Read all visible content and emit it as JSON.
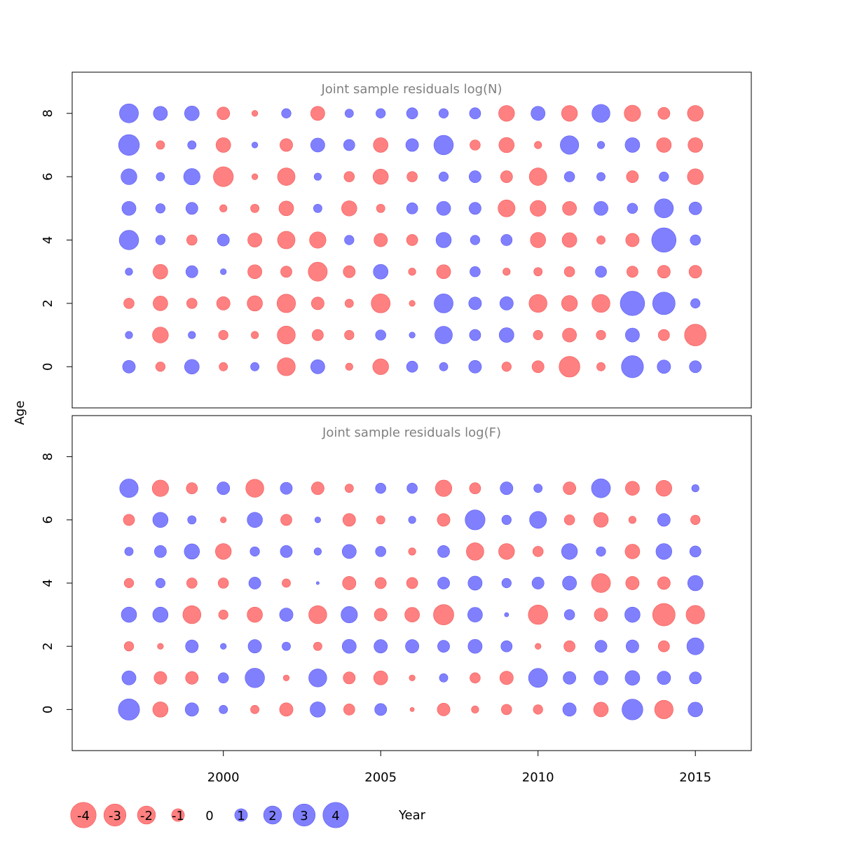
{
  "chart_data": {
    "type": "bubble",
    "xlabel": "Year",
    "ylabel": "Age",
    "x": [
      1997,
      1998,
      1999,
      2000,
      2001,
      2002,
      2003,
      2004,
      2005,
      2006,
      2007,
      2008,
      2009,
      2010,
      2011,
      2012,
      2013,
      2014,
      2015
    ],
    "x_ticks": [
      "2000",
      "2005",
      "2010",
      "2015"
    ],
    "colors": {
      "positive": "#8080ff",
      "negative": "#ff8080",
      "stroke_positive": "#5a5af0",
      "stroke_negative": "#f05a5a",
      "frame": "#000000",
      "title": "#808080"
    },
    "legend": {
      "values": [
        -4,
        -3,
        -2,
        -1,
        0,
        1,
        2,
        3,
        4
      ],
      "labels": [
        "-4",
        "-3",
        "-2",
        "-1",
        "0",
        "1",
        "2",
        "3",
        "4"
      ]
    },
    "panels": [
      {
        "title": "Joint sample residuals log(N)",
        "ylim": [
          -1.3,
          9.3
        ],
        "y_ticks": [
          "0",
          "2",
          "4",
          "6",
          "8"
        ],
        "ages": [
          0,
          1,
          2,
          3,
          4,
          5,
          6,
          7,
          8
        ],
        "residuals": [
          [
            0.9,
            -0.5,
            1.2,
            -0.4,
            0.4,
            -1.8,
            1.1,
            -0.3,
            -1.4,
            0.7,
            0.4,
            0.9,
            -0.5,
            -0.8,
            -2.4,
            -0.4,
            2.7,
            1.0,
            0.8
          ],
          [
            0.3,
            -1.4,
            0.3,
            -0.5,
            -0.3,
            -1.8,
            -0.7,
            -0.5,
            0.6,
            0.2,
            1.7,
            0.7,
            1.2,
            -0.5,
            -1.1,
            -0.5,
            1.1,
            -0.7,
            -2.6
          ],
          [
            -0.6,
            -1.2,
            -0.6,
            -1.0,
            -1.3,
            -1.9,
            -0.9,
            -0.4,
            -2.0,
            -0.2,
            2.0,
            0.9,
            1.0,
            -1.8,
            -1.4,
            -1.8,
            3.3,
            2.8,
            0.5
          ],
          [
            0.3,
            -1.2,
            0.8,
            0.2,
            -1.1,
            -0.7,
            -2.0,
            -0.8,
            1.2,
            -0.3,
            -1.1,
            0.6,
            -0.3,
            -0.4,
            -0.6,
            0.7,
            -0.7,
            -0.9,
            -0.9
          ],
          [
            2.1,
            0.5,
            -0.6,
            0.8,
            -1.1,
            -1.7,
            -1.5,
            0.5,
            -1.0,
            -0.7,
            1.3,
            0.5,
            0.7,
            -1.3,
            -1.2,
            -0.4,
            -1.0,
            3.3,
            0.6
          ],
          [
            1.1,
            0.5,
            0.8,
            -0.3,
            -0.4,
            -1.2,
            0.4,
            -1.3,
            -0.4,
            0.7,
            1.1,
            0.8,
            -1.6,
            -1.4,
            -1.1,
            1.1,
            0.6,
            2.0,
            0.9
          ],
          [
            1.4,
            0.4,
            1.5,
            -2.2,
            -0.2,
            -1.7,
            0.3,
            -0.6,
            -1.3,
            -0.6,
            0.5,
            0.8,
            -0.8,
            -1.7,
            0.6,
            0.4,
            -0.8,
            0.5,
            -1.4
          ],
          [
            2.4,
            -0.4,
            0.4,
            -1.2,
            0.2,
            -0.9,
            1.1,
            0.7,
            -1.2,
            0.9,
            2.1,
            -0.6,
            -1.3,
            -0.3,
            1.9,
            0.3,
            1.2,
            -1.2,
            -1.2
          ],
          [
            2.0,
            1.1,
            1.2,
            -0.9,
            -0.2,
            0.5,
            -1.1,
            0.4,
            0.5,
            0.7,
            0.5,
            0.7,
            -1.4,
            1.1,
            -1.4,
            1.8,
            -1.5,
            -0.8,
            -1.4
          ]
        ]
      },
      {
        "title": "Joint sample residuals log(F)",
        "ylim": [
          -1.3,
          9.3
        ],
        "y_ticks": [
          "0",
          "2",
          "4",
          "6",
          "8"
        ],
        "ages": [
          0,
          1,
          2,
          3,
          4,
          5,
          6,
          7
        ],
        "residuals": [
          [
            2.5,
            -1.3,
            1.0,
            0.4,
            -0.4,
            -1.0,
            1.3,
            -0.7,
            0.8,
            -0.1,
            -0.9,
            -0.3,
            -0.6,
            -0.5,
            1.0,
            -1.2,
            2.4,
            -1.9,
            1.2
          ],
          [
            1.1,
            -0.9,
            -0.9,
            0.6,
            2.1,
            -0.2,
            1.8,
            -0.8,
            -1.1,
            -0.2,
            0.4,
            -0.6,
            -1.0,
            2.0,
            0.9,
            1.1,
            1.2,
            1.0,
            0.8
          ],
          [
            -0.5,
            -0.2,
            0.9,
            0.2,
            1.0,
            0.4,
            -0.4,
            1.1,
            1.0,
            1.0,
            0.8,
            1.1,
            0.7,
            -0.2,
            -0.7,
            0.8,
            0.9,
            -0.7,
            1.6
          ],
          [
            1.3,
            1.3,
            -1.8,
            -0.5,
            -1.3,
            1.0,
            -1.8,
            1.5,
            -0.9,
            -1.2,
            -2.3,
            1.2,
            0.1,
            -2.1,
            0.6,
            -1.0,
            1.3,
            -2.8,
            -1.9
          ],
          [
            -0.5,
            0.5,
            -0.6,
            -0.6,
            0.8,
            -0.4,
            0.05,
            -1.0,
            -0.7,
            -0.7,
            0.8,
            1.1,
            0.5,
            0.8,
            1.1,
            -2.0,
            -1.0,
            -0.9,
            1.3
          ],
          [
            0.4,
            0.8,
            1.3,
            -1.4,
            0.5,
            0.8,
            0.3,
            1.1,
            0.6,
            -0.3,
            0.8,
            -1.7,
            -1.4,
            -0.6,
            1.4,
            0.5,
            -1.2,
            1.4,
            0.7
          ],
          [
            -0.7,
            1.3,
            0.4,
            -0.2,
            1.3,
            -0.7,
            0.2,
            -0.9,
            -0.4,
            0.3,
            -0.9,
            2.2,
            0.5,
            1.6,
            -0.6,
            -1.2,
            -0.3,
            0.9,
            -0.5
          ],
          [
            1.9,
            -1.5,
            -0.7,
            0.9,
            -1.8,
            0.8,
            -0.9,
            -0.4,
            0.6,
            0.6,
            -1.5,
            -0.7,
            0.9,
            0.4,
            -0.9,
            2.0,
            -1.1,
            -1.4,
            0.3
          ]
        ]
      }
    ]
  }
}
